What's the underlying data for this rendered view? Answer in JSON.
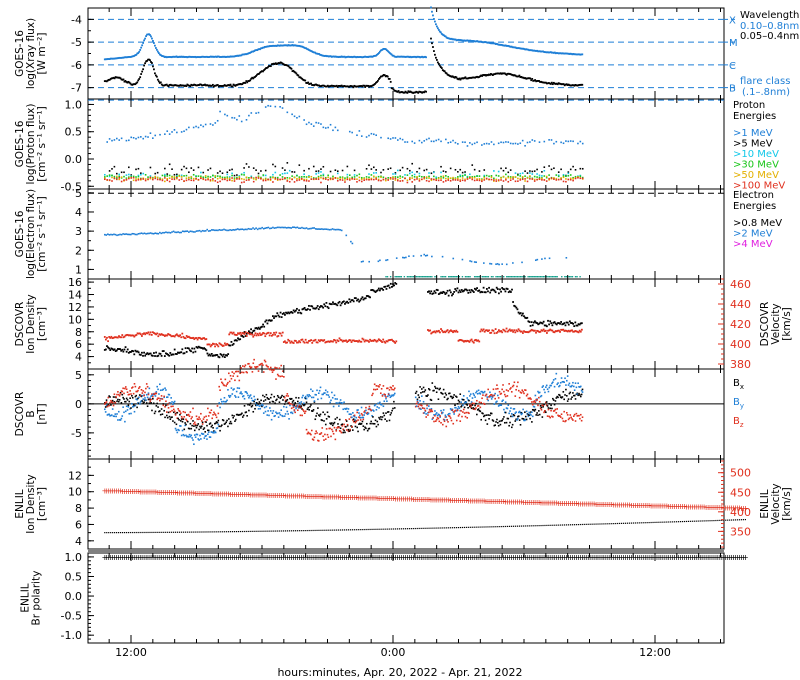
{
  "figure": {
    "x_axis_label": "hours:minutes, Apr. 20, 2022 - Apr. 21, 2022",
    "x_ticks": [
      "12:00",
      "0:00",
      "12:00"
    ]
  },
  "chart_data": [
    {
      "id": "xray",
      "type": "scatter",
      "ylabel_lines": [
        "GOES-16",
        "log(Xray flux)",
        "[W m⁻²]"
      ],
      "ylim": [
        -7.5,
        -3.5
      ],
      "yticks": [
        "-4",
        "-5",
        "-6",
        "-7"
      ],
      "legend_placement": "right",
      "legend": [
        {
          "text": "X Wavelength",
          "color": "#000000"
        },
        {
          "text": "0.10–0.8nm",
          "color": "#1f7fd6"
        },
        {
          "text": "0.05–0.4nm",
          "color": "#000000"
        },
        {
          "text": "B flare class",
          "color": "#1f7fd6"
        },
        {
          "text": "(.1–.8nm)",
          "color": "#1f7fd6"
        }
      ],
      "flare_classes": [
        {
          "label": "X",
          "value": -4
        },
        {
          "label": "M",
          "value": -5
        },
        {
          "label": "C",
          "value": -6
        },
        {
          "label": "B",
          "value": -7
        }
      ],
      "series": [
        {
          "name": "0.10–0.8nm",
          "color": "#1f7fd6",
          "x": [
            0,
            1,
            2,
            3,
            4,
            5,
            6,
            7,
            8,
            9,
            10,
            11,
            12,
            13,
            14,
            15,
            16,
            17,
            18,
            19,
            20,
            21,
            22,
            23,
            24,
            25,
            26,
            27,
            28,
            29,
            30,
            31,
            32,
            33,
            34,
            35,
            36,
            37,
            38,
            39,
            40,
            41,
            42,
            43,
            44,
            45,
            46,
            47,
            48,
            49,
            50,
            51,
            52,
            53,
            54,
            55,
            56,
            57,
            58,
            59,
            60,
            61,
            62,
            63,
            64,
            65,
            66,
            67,
            68,
            69,
            70,
            71,
            72,
            73,
            74,
            75,
            76,
            77,
            78,
            79,
            80,
            81,
            82,
            83,
            84,
            85,
            86,
            87,
            88,
            89,
            90,
            91,
            92,
            93,
            94,
            95,
            96,
            97,
            98,
            99,
            100,
            101,
            102,
            103,
            104,
            105,
            106,
            107,
            108,
            109,
            110,
            111,
            112,
            113,
            114,
            115,
            116,
            117,
            118,
            119,
            120,
            121,
            122,
            123,
            124,
            125,
            126,
            127,
            128,
            129,
            130,
            131,
            132,
            133,
            134,
            135,
            136,
            137,
            138,
            139,
            140,
            141,
            142,
            143,
            144,
            145,
            146,
            147,
            148,
            149,
            150,
            151,
            152,
            153,
            154,
            155,
            156,
            157,
            158,
            159,
            160,
            161,
            162,
            163,
            164,
            165,
            166,
            167,
            168,
            169,
            170,
            171,
            172,
            173,
            174,
            175,
            176,
            177,
            178,
            179,
            180,
            181,
            182,
            183,
            184,
            185,
            186,
            187,
            188,
            189,
            190,
            191,
            192,
            193,
            194,
            195,
            196,
            197,
            198,
            199,
            200,
            201,
            202,
            203,
            204,
            205,
            206,
            207,
            208,
            209,
            210,
            211,
            212,
            213,
            214,
            215,
            216,
            217,
            218,
            219,
            220,
            221,
            222,
            223,
            224,
            225,
            226,
            227,
            228,
            229,
            230,
            231,
            232,
            233,
            234,
            235,
            236,
            237,
            238,
            239,
            240,
            241,
            242,
            243,
            244,
            245,
            246,
            247,
            248,
            249,
            250,
            251,
            252,
            253,
            254,
            255,
            256,
            257,
            258,
            259,
            260,
            261,
            262,
            263,
            264,
            265,
            266,
            267,
            268,
            269,
            270,
            271,
            272,
            273,
            274,
            275,
            276,
            277,
            278,
            279,
            280,
            281,
            282,
            283,
            284,
            285,
            286,
            287,
            288,
            289,
            290,
            291,
            292,
            293,
            294,
            295,
            296,
            297,
            298,
            299,
            300,
            301,
            302,
            303,
            304,
            305,
            306,
            307,
            308,
            309,
            310,
            311,
            312,
            313,
            314,
            315,
            316,
            317,
            318,
            319,
            320,
            321,
            322,
            323,
            324,
            325,
            326,
            327,
            328,
            329,
            330,
            331,
            332,
            333,
            334,
            335,
            336,
            337,
            338,
            339,
            340,
            341,
            342,
            343,
            344,
            345,
            346,
            347,
            348,
            349,
            350,
            351,
            352,
            353,
            354,
            355,
            356,
            357,
            358,
            359,
            360,
            361,
            362,
            363,
            364,
            365,
            366,
            367,
            368,
            369,
            370,
            371,
            372,
            373,
            374,
            375,
            376,
            377,
            378,
            379,
            380,
            381,
            382,
            383,
            384,
            385,
            386,
            387,
            388,
            389,
            390,
            391,
            392,
            393,
            394,
            395,
            396,
            397,
            398,
            399,
            400,
            401,
            402,
            403,
            404,
            405,
            406,
            407,
            408,
            409,
            410,
            411,
            412,
            413,
            414,
            415,
            416,
            417,
            418,
            419,
            420,
            421,
            422,
            423,
            424,
            425,
            426,
            427,
            428,
            429,
            430,
            431,
            432,
            433,
            434,
            435,
            436,
            437,
            438,
            439,
            440,
            441,
            442,
            443,
            444,
            445,
            446,
            447,
            448,
            449,
            450,
            451,
            452,
            453,
            454,
            455,
            456,
            457,
            458,
            459,
            460,
            461,
            462,
            463,
            464,
            465,
            466,
            467,
            468,
            469,
            470,
            471,
            472,
            473,
            474,
            475,
            476,
            477,
            478,
            479,
            480,
            481,
            482,
            483,
            484,
            485,
            486,
            487,
            488,
            489,
            490,
            491,
            492,
            493,
            494,
            495,
            496,
            497,
            498,
            499,
            500,
            501,
            502,
            503,
            504,
            505,
            506,
            507,
            508,
            509
          ],
          "y_model": "xray_hi"
        },
        {
          "name": "0.05–0.4nm",
          "color": "#000000",
          "y_model": "xray_lo"
        }
      ]
    },
    {
      "id": "proton",
      "type": "scatter",
      "ylabel_lines": [
        "GOES-16",
        "log(Proton flux)",
        "[cm⁻² s⁻¹ sr⁻¹]"
      ],
      "ylim": [
        -0.55,
        1.1
      ],
      "yticks": [
        "1.0",
        "0.5",
        "0.0",
        "-0.5"
      ],
      "legend_placement": "right",
      "legend_title": [
        "Proton",
        "Energies"
      ],
      "legend": [
        {
          "text": ">1 MeV",
          "color": "#1f7fd6"
        },
        {
          "text": ">5 MeV",
          "color": "#000000"
        },
        {
          "text": ">10 MeV",
          "color": "#12c8e8"
        },
        {
          "text": ">30 MeV",
          "color": "#19c619"
        },
        {
          "text": ">50 MeV",
          "color": "#e3b000"
        },
        {
          "text": ">100 MeV",
          "color": "#e0301e"
        }
      ]
    },
    {
      "id": "electron",
      "type": "scatter",
      "ylabel_lines": [
        "GOES-16",
        "log(Electron flux)",
        "[cm⁻² s⁻¹ sr⁻¹]"
      ],
      "ylim": [
        0.5,
        5.2
      ],
      "yticks": [
        "5",
        "4",
        "3",
        "2",
        "1"
      ],
      "legend_placement": "right",
      "legend_title": [
        "Electron",
        "Energies"
      ],
      "legend": [
        {
          "text": ">0.8 MeV",
          "color": "#000000"
        },
        {
          "text": ">2 MeV",
          "color": "#1f7fd6"
        },
        {
          "text": ">4 MeV",
          "color": "#e020e0"
        }
      ]
    },
    {
      "id": "dscovr_density",
      "type": "scatter",
      "ylabel_lines": [
        "DSCOVR",
        "Ion Density",
        "[cm⁻³]"
      ],
      "ylabel_right_lines": [
        "DSCOVR",
        "Velocity",
        "[km/s]"
      ],
      "ylim": [
        2,
        16.5
      ],
      "yticks": [
        "16",
        "14",
        "12",
        "10",
        "8",
        "6",
        "4"
      ],
      "ylim_right": [
        375,
        465
      ],
      "yticks_right": [
        "460",
        "440",
        "420",
        "400",
        "380"
      ],
      "series": [
        {
          "name": "Ion Density",
          "color": "#000000"
        },
        {
          "name": "Velocity",
          "color": "#e0301e"
        }
      ]
    },
    {
      "id": "dscovr_b",
      "type": "scatter",
      "ylabel_lines": [
        "DSCOVR",
        "B",
        "[nT]"
      ],
      "ylim": [
        -9.5,
        6
      ],
      "yticks": [
        "5",
        "0",
        "-5"
      ],
      "legend_placement": "right",
      "legend": [
        {
          "text": "Bx",
          "sub": "x",
          "color": "#000000"
        },
        {
          "text": "By",
          "sub": "y",
          "color": "#1f7fd6"
        },
        {
          "text": "Bz",
          "sub": "z",
          "color": "#e0301e"
        }
      ]
    },
    {
      "id": "enlil_density",
      "type": "line",
      "ylabel_lines": [
        "ENLIL",
        "Ion Density",
        "[cm⁻³]"
      ],
      "ylabel_right_lines": [
        "ENLIL",
        "Velocity",
        "[km/s]"
      ],
      "ylim": [
        3,
        14
      ],
      "yticks": [
        "12",
        "10",
        "8",
        "6",
        "4"
      ],
      "ylim_right": [
        305,
        535
      ],
      "yticks_right": [
        "500",
        "450",
        "400",
        "350"
      ],
      "series": [
        {
          "name": "Ion Density",
          "color": "#000000",
          "x_hours": [
            -13.2,
            16.2
          ],
          "y": [
            5.0,
            6.6
          ]
        },
        {
          "name": "Velocity",
          "color": "#e0301e",
          "x_hours": [
            -13.2,
            16.2
          ],
          "y": [
            455,
            410
          ]
        }
      ]
    },
    {
      "id": "enlil_polarity",
      "type": "line",
      "ylabel_lines": [
        "ENLIL",
        "Br polarity"
      ],
      "ylim": [
        -1.2,
        1.1
      ],
      "yticks": [
        "1.0",
        "0.5",
        "0.0",
        "-0.5",
        "-1.0"
      ],
      "series": [
        {
          "name": "Br polarity",
          "color": "#000000",
          "x_hours": [
            -13.2,
            16.2
          ],
          "y": [
            1.0,
            1.0
          ]
        }
      ]
    }
  ]
}
